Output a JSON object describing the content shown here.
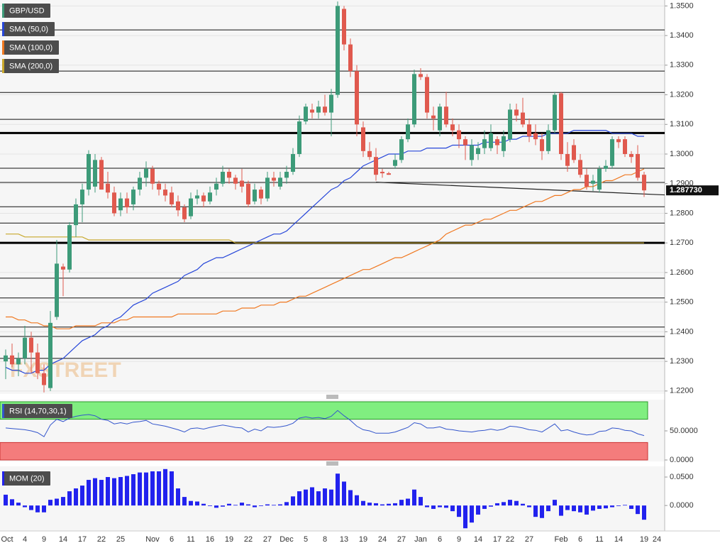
{
  "chart_data": [
    {
      "type": "candlestick",
      "name": "GBP/USD",
      "up_color": "#3d9b79",
      "down_color": "#e0594e",
      "watermark": "FXSTREET",
      "categories": [
        "Oct",
        null,
        null,
        "4",
        null,
        null,
        "9",
        null,
        null,
        "14",
        null,
        null,
        "17",
        null,
        null,
        "22",
        null,
        null,
        "25",
        null,
        null,
        null,
        null,
        "Nov",
        null,
        null,
        "6",
        null,
        null,
        "11",
        null,
        null,
        "16",
        null,
        null,
        "19",
        null,
        null,
        "22",
        null,
        null,
        "27",
        null,
        null,
        "Dec",
        null,
        null,
        "5",
        null,
        null,
        "8",
        null,
        null,
        "13",
        null,
        null,
        "19",
        null,
        null,
        "24",
        null,
        null,
        "27",
        null,
        null,
        "Jan",
        null,
        null,
        "6",
        null,
        null,
        "9",
        null,
        null,
        "14",
        null,
        null,
        "17",
        null,
        "22",
        null,
        null,
        "27",
        null,
        null,
        null,
        null,
        "Feb",
        null,
        null,
        "6",
        null,
        null,
        "11",
        null,
        null,
        "14",
        null,
        null,
        null,
        "19",
        null,
        "24"
      ],
      "open": [
        1.23,
        1.232,
        1.229,
        1.231,
        1.238,
        1.233,
        1.226,
        1.221,
        1.245,
        1.262,
        1.261,
        1.276,
        1.283,
        1.288,
        1.289,
        1.298,
        1.29,
        1.287,
        1.281,
        1.285,
        1.283,
        1.288,
        1.292,
        1.295,
        1.29,
        1.288,
        1.287,
        1.284,
        1.282,
        1.279,
        1.285,
        1.286,
        1.284,
        1.288,
        1.29,
        1.294,
        1.292,
        1.291,
        1.29,
        1.284,
        1.288,
        1.285,
        1.292,
        1.289,
        1.292,
        1.294,
        1.3,
        1.311,
        1.315,
        1.314,
        1.316,
        1.314,
        1.32,
        1.349,
        1.337,
        1.328,
        1.309,
        1.301,
        1.299,
        1.294,
        1.2935,
        1.296,
        1.298,
        1.305,
        1.31,
        1.327,
        1.326,
        1.313,
        1.308,
        1.316,
        1.31,
        1.308,
        1.305,
        1.298,
        1.3,
        1.302,
        1.302,
        1.305,
        1.301,
        1.305,
        1.315,
        1.314,
        1.31,
        1.307,
        1.305,
        1.301,
        1.308,
        1.3205,
        1.3,
        1.303,
        1.298,
        1.293,
        1.29,
        1.288,
        1.295,
        1.296,
        1.305,
        1.305,
        1.3,
        1.3,
        1.293,
        null,
        null
      ],
      "high": [
        1.234,
        1.236,
        1.233,
        1.242,
        1.24,
        1.236,
        1.229,
        1.247,
        1.271,
        1.263,
        1.277,
        1.285,
        1.29,
        1.3013,
        1.3,
        1.299,
        1.294,
        1.289,
        1.287,
        1.287,
        1.289,
        1.294,
        1.2975,
        1.296,
        1.291,
        1.29,
        1.289,
        1.286,
        1.283,
        1.287,
        1.288,
        1.287,
        1.289,
        1.292,
        1.296,
        1.295,
        1.293,
        1.295,
        1.291,
        1.29,
        1.289,
        1.294,
        1.294,
        1.294,
        1.296,
        1.302,
        1.313,
        1.317,
        1.317,
        1.318,
        1.32,
        1.322,
        1.3515,
        1.35,
        1.339,
        1.33,
        1.311,
        1.304,
        1.302,
        1.295,
        1.294,
        1.3,
        1.306,
        1.312,
        1.3285,
        1.329,
        1.327,
        1.316,
        1.317,
        1.321,
        1.312,
        1.31,
        1.306,
        1.305,
        1.304,
        1.308,
        1.31,
        1.306,
        1.308,
        1.317,
        1.317,
        1.319,
        1.312,
        1.31,
        1.307,
        1.31,
        1.321,
        1.321,
        1.304,
        1.305,
        1.3,
        1.295,
        1.293,
        1.296,
        1.298,
        1.306,
        1.306,
        1.306,
        1.301,
        1.303,
        1.294,
        null,
        null
      ],
      "low": [
        1.224,
        1.228,
        1.225,
        1.229,
        1.226,
        1.224,
        1.2195,
        1.22,
        1.244,
        1.252,
        1.26,
        1.272,
        1.277,
        1.286,
        1.287,
        1.288,
        1.285,
        1.279,
        1.279,
        1.28,
        1.281,
        1.286,
        1.289,
        1.288,
        1.286,
        1.284,
        1.282,
        1.279,
        1.277,
        1.278,
        1.283,
        1.282,
        1.283,
        1.286,
        1.289,
        1.29,
        1.288,
        1.287,
        1.282,
        1.283,
        1.283,
        1.284,
        1.289,
        1.288,
        1.29,
        1.293,
        1.299,
        1.31,
        1.312,
        1.312,
        1.313,
        1.306,
        1.319,
        1.335,
        1.326,
        1.306,
        1.299,
        1.298,
        1.291,
        1.292,
        1.293,
        1.295,
        1.297,
        1.304,
        1.309,
        1.325,
        1.312,
        1.308,
        1.306,
        1.309,
        1.306,
        1.302,
        1.298,
        1.296,
        1.298,
        1.3,
        1.301,
        1.3,
        1.299,
        1.304,
        1.311,
        1.309,
        1.304,
        1.303,
        1.298,
        1.3,
        1.307,
        1.298,
        1.294,
        1.297,
        1.292,
        1.288,
        1.2875,
        1.287,
        1.294,
        1.295,
        1.302,
        1.299,
        1.297,
        1.291,
        1.2855,
        null,
        null
      ],
      "close": [
        1.232,
        1.229,
        1.231,
        1.238,
        1.233,
        1.226,
        1.222,
        1.243,
        1.263,
        1.261,
        1.276,
        1.283,
        1.288,
        1.3,
        1.298,
        1.288,
        1.287,
        1.28,
        1.285,
        1.282,
        1.288,
        1.292,
        1.295,
        1.29,
        1.288,
        1.286,
        1.283,
        1.281,
        1.278,
        1.285,
        1.286,
        1.284,
        1.287,
        1.29,
        1.294,
        1.292,
        1.29,
        1.289,
        1.283,
        1.288,
        1.285,
        1.292,
        1.291,
        1.292,
        1.294,
        1.3,
        1.311,
        1.316,
        1.314,
        1.316,
        1.314,
        1.32,
        1.35,
        1.337,
        1.328,
        1.31,
        1.301,
        1.299,
        1.293,
        1.2935,
        1.293,
        1.298,
        1.305,
        1.31,
        1.327,
        1.326,
        1.314,
        1.312,
        1.316,
        1.31,
        1.308,
        1.305,
        1.303,
        1.303,
        1.302,
        1.305,
        1.307,
        1.303,
        1.306,
        1.315,
        1.313,
        1.31,
        1.306,
        1.305,
        1.301,
        1.308,
        1.32,
        1.3,
        1.296,
        1.298,
        1.293,
        1.289,
        1.291,
        1.295,
        1.296,
        1.305,
        1.304,
        1.3,
        1.299,
        1.292,
        1.28773,
        null,
        null
      ],
      "last_label": "1.287730",
      "overlays": [
        {
          "name": "SMA (50,0)",
          "color": "#2646d9",
          "values": [
            1.228,
            1.227,
            1.227,
            1.226,
            1.226,
            1.227,
            1.227,
            1.229,
            1.23,
            1.231,
            1.233,
            1.235,
            1.237,
            1.238,
            1.239,
            1.241,
            1.242,
            1.244,
            1.245,
            1.247,
            1.249,
            1.25,
            1.251,
            1.253,
            1.254,
            1.255,
            1.256,
            1.257,
            1.259,
            1.26,
            1.261,
            1.263,
            1.264,
            1.265,
            1.265,
            1.266,
            1.267,
            1.268,
            1.269,
            1.27,
            1.271,
            1.272,
            1.273,
            1.273,
            1.274,
            1.276,
            1.278,
            1.28,
            1.282,
            1.284,
            1.286,
            1.288,
            1.289,
            1.291,
            1.292,
            1.294,
            1.296,
            1.297,
            1.298,
            1.299,
            1.3,
            1.3,
            1.3,
            1.301,
            1.301,
            1.301,
            1.302,
            1.302,
            1.302,
            1.302,
            1.303,
            1.303,
            1.303,
            1.303,
            1.303,
            1.304,
            1.304,
            1.304,
            1.304,
            1.305,
            1.305,
            1.306,
            1.306,
            1.306,
            1.306,
            1.307,
            1.307,
            1.307,
            1.307,
            1.308,
            1.308,
            1.308,
            1.308,
            1.308,
            1.308,
            1.307,
            1.307,
            1.307,
            1.307,
            1.306,
            1.306,
            null,
            null
          ]
        },
        {
          "name": "SMA (100,0)",
          "color": "#f07820",
          "values": [
            1.245,
            1.245,
            1.244,
            1.244,
            1.243,
            1.243,
            1.242,
            1.242,
            1.241,
            1.241,
            1.241,
            1.242,
            1.242,
            1.242,
            1.242,
            1.243,
            1.243,
            1.243,
            1.244,
            1.244,
            1.245,
            1.245,
            1.245,
            1.245,
            1.245,
            1.245,
            1.245,
            1.246,
            1.246,
            1.246,
            1.246,
            1.246,
            1.246,
            1.246,
            1.247,
            1.247,
            1.247,
            1.248,
            1.248,
            1.248,
            1.249,
            1.249,
            1.249,
            1.25,
            1.25,
            1.251,
            1.252,
            1.252,
            1.253,
            1.254,
            1.255,
            1.256,
            1.257,
            1.258,
            1.259,
            1.26,
            1.261,
            1.261,
            1.262,
            1.263,
            1.264,
            1.265,
            1.265,
            1.266,
            1.267,
            1.268,
            1.269,
            1.27,
            1.271,
            1.273,
            1.274,
            1.275,
            1.276,
            1.276,
            1.277,
            1.278,
            1.278,
            1.279,
            1.28,
            1.281,
            1.281,
            1.282,
            1.283,
            1.284,
            1.284,
            1.285,
            1.286,
            1.286,
            1.287,
            1.288,
            1.288,
            1.289,
            1.289,
            1.29,
            1.291,
            1.291,
            1.292,
            1.293,
            1.293,
            1.294,
            1.295,
            null,
            null
          ]
        },
        {
          "name": "SMA (200,0)",
          "color": "#c8a82c",
          "values": [
            1.273,
            1.273,
            1.273,
            1.272,
            1.272,
            1.272,
            1.272,
            1.272,
            1.272,
            1.272,
            1.272,
            1.272,
            1.272,
            1.271,
            1.271,
            1.271,
            1.271,
            1.271,
            1.271,
            1.271,
            1.271,
            1.271,
            1.271,
            1.271,
            1.271,
            1.271,
            1.271,
            1.271,
            1.271,
            1.271,
            1.271,
            1.271,
            1.271,
            1.271,
            1.271,
            1.271,
            1.27,
            1.27,
            1.27,
            1.27,
            1.27,
            1.27,
            1.27,
            1.27,
            1.27,
            1.27,
            1.27,
            1.27,
            1.27,
            1.27,
            1.27,
            1.27,
            1.27,
            1.27,
            1.27,
            1.27,
            1.27,
            1.27,
            1.27,
            1.27,
            1.27,
            1.27,
            1.27,
            1.27,
            1.27,
            1.27,
            1.27,
            1.27,
            1.27,
            1.27,
            1.27,
            1.27,
            1.27,
            1.27,
            1.27,
            1.27,
            1.27,
            1.27,
            1.27,
            1.27,
            1.27,
            1.27,
            1.27,
            1.27,
            1.27,
            1.27,
            1.27,
            1.27,
            1.27,
            1.27,
            1.27,
            1.27,
            1.27,
            1.27,
            1.27,
            1.27,
            1.27,
            1.27,
            1.27,
            1.27,
            1.27,
            null,
            null
          ]
        }
      ],
      "levels": [
        1.3419,
        1.328,
        1.3208,
        1.3117,
        1.2952,
        1.2904,
        1.2822,
        1.2767,
        1.2581,
        1.2514,
        1.2416,
        1.2384,
        1.231
      ],
      "major_levels": [
        1.3071,
        1.27
      ],
      "trendline": [
        1.2905,
        1.2862
      ],
      "ylim": [
        1.219,
        1.352
      ],
      "yticks": [
        {
          "value": 1.35,
          "label": "1.3500"
        },
        {
          "value": 1.34,
          "label": "1.3400"
        },
        {
          "value": 1.33,
          "label": "1.3300"
        },
        {
          "value": 1.32,
          "label": "1.3200"
        },
        {
          "value": 1.31,
          "label": "1.3100"
        },
        {
          "value": 1.3,
          "label": "1.3000"
        },
        {
          "value": 1.29,
          "label": "1.2900"
        },
        {
          "value": 1.28,
          "label": "1.2800"
        },
        {
          "value": 1.27,
          "label": "1.2700"
        },
        {
          "value": 1.26,
          "label": "1.2600"
        },
        {
          "value": 1.25,
          "label": "1.2500"
        },
        {
          "value": 1.24,
          "label": "1.2400"
        },
        {
          "value": 1.23,
          "label": "1.2300"
        },
        {
          "value": 1.22,
          "label": "1.2200"
        }
      ],
      "grid": true
    },
    {
      "type": "line",
      "name": "RSI (14,70,30,1)",
      "color": "#3355cc",
      "upper": 70,
      "lower": 30,
      "values": [
        55,
        54,
        53,
        52,
        50,
        47,
        40,
        60,
        70,
        66,
        72,
        75,
        77,
        78,
        76,
        70,
        68,
        62,
        64,
        62,
        65,
        66,
        68,
        62,
        60,
        58,
        55,
        52,
        48,
        54,
        55,
        53,
        56,
        58,
        60,
        58,
        56,
        55,
        48,
        53,
        50,
        57,
        56,
        57,
        59,
        63,
        72,
        74,
        72,
        73,
        71,
        75,
        85,
        76,
        68,
        58,
        52,
        50,
        46,
        46,
        46,
        48,
        52,
        56,
        64,
        62,
        55,
        55,
        57,
        53,
        52,
        50,
        49,
        48,
        50,
        51,
        53,
        51,
        53,
        58,
        57,
        55,
        52,
        51,
        48,
        55,
        62,
        50,
        52,
        48,
        45,
        43,
        44,
        49,
        50,
        55,
        54,
        51,
        50,
        45,
        42,
        null,
        null
      ],
      "ylim": [
        0,
        100
      ],
      "yticks": [
        {
          "value": 50,
          "label": "50.0000"
        },
        {
          "value": 0,
          "label": "0.0000"
        }
      ]
    },
    {
      "type": "bar",
      "name": "MOM (20)",
      "color": "#2222ee",
      "values": [
        0.019,
        0.011,
        0.005,
        -0.003,
        -0.008,
        -0.012,
        -0.012,
        0.01,
        0.012,
        0.015,
        0.025,
        0.03,
        0.035,
        0.045,
        0.048,
        0.045,
        0.05,
        0.048,
        0.05,
        0.052,
        0.055,
        0.058,
        0.058,
        0.06,
        0.06,
        0.064,
        0.06,
        0.03,
        0.015,
        0.008,
        0.007,
        0.003,
        -0.001,
        -0.004,
        -0.002,
        0.003,
        0.001,
        0.005,
        0.002,
        -0.003,
        -0.001,
        0.002,
        0.001,
        0.002,
        0.006,
        0.016,
        0.025,
        0.028,
        0.032,
        0.025,
        0.03,
        0.028,
        0.056,
        0.042,
        0.027,
        0.018,
        0.008,
        0.005,
        0.004,
        0.002,
        0.003,
        0.004,
        0.01,
        0.012,
        0.028,
        0.015,
        -0.003,
        -0.006,
        -0.003,
        -0.004,
        -0.01,
        -0.02,
        -0.04,
        -0.03,
        -0.016,
        -0.006,
        -0.002,
        0.004,
        0.006,
        0.01,
        0.008,
        0.003,
        -0.003,
        -0.02,
        -0.022,
        -0.01,
        0.01,
        -0.018,
        -0.008,
        -0.01,
        -0.012,
        -0.016,
        -0.009,
        -0.006,
        -0.005,
        -0.003,
        -0.001,
        0.001,
        -0.006,
        -0.015,
        -0.025,
        null,
        null
      ],
      "ylim": [
        -0.041,
        0.065
      ],
      "yticks": [
        {
          "value": 0.05,
          "label": "0.0500"
        },
        {
          "value": 0,
          "label": "0.0000"
        }
      ]
    }
  ]
}
